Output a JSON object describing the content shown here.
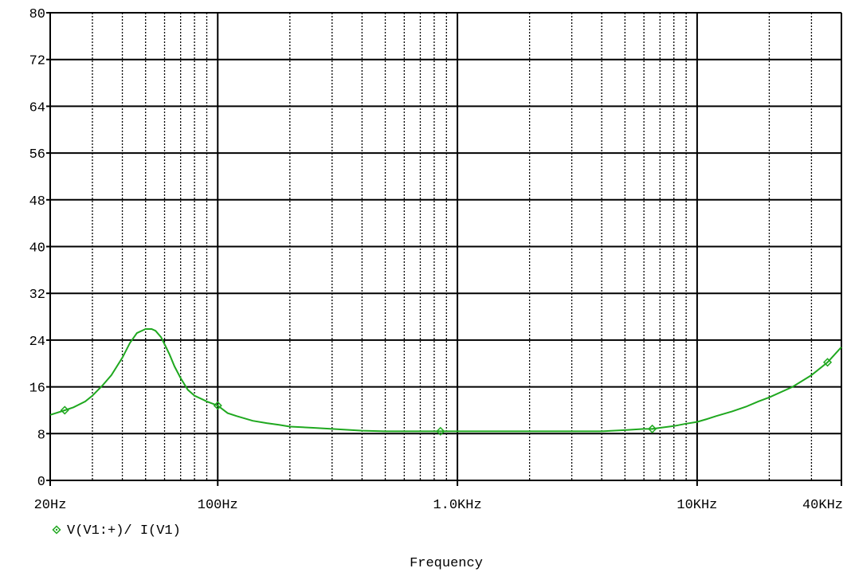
{
  "chart_data": {
    "type": "line",
    "xscale": "log",
    "xlim": [
      20,
      40000
    ],
    "ylim": [
      0,
      80
    ],
    "grid": true,
    "legend_position": "bottom-left",
    "xlabel": "Frequency",
    "ylabel": "",
    "y_ticks": [
      0,
      8,
      16,
      24,
      32,
      40,
      48,
      56,
      64,
      72,
      80
    ],
    "x_ticks": [
      {
        "value": 20,
        "label": "20Hz"
      },
      {
        "value": 100,
        "label": "100Hz"
      },
      {
        "value": 1000,
        "label": "1.0KHz"
      },
      {
        "value": 10000,
        "label": "10KHz"
      },
      {
        "value": 40000,
        "label": "40KHz"
      }
    ],
    "series": [
      {
        "name": "V(V1:+)/ I(V1)",
        "color": "#1fa81f",
        "marker": "diamond",
        "marker_x": [
          23,
          100,
          850,
          6500,
          35000
        ],
        "x": [
          20,
          23,
          25,
          28,
          30,
          33,
          36,
          40,
          43,
          46,
          50,
          53,
          55,
          58,
          60,
          63,
          66,
          70,
          75,
          80,
          90,
          100,
          110,
          120,
          140,
          160,
          180,
          200,
          250,
          300,
          400,
          500,
          700,
          1000,
          2000,
          3000,
          4000,
          5000,
          6000,
          6500,
          7000,
          8000,
          9000,
          10000,
          11000,
          12000,
          14000,
          16000,
          18000,
          20000,
          25000,
          30000,
          35000,
          40000
        ],
        "y": [
          11.2,
          12.0,
          12.5,
          13.5,
          14.5,
          16.2,
          18.0,
          21.0,
          23.5,
          25.2,
          25.9,
          25.9,
          25.6,
          24.5,
          23.3,
          21.5,
          19.5,
          17.5,
          15.5,
          14.5,
          13.5,
          12.8,
          11.5,
          11.0,
          10.2,
          9.8,
          9.5,
          9.2,
          9.0,
          8.8,
          8.5,
          8.4,
          8.4,
          8.4,
          8.4,
          8.4,
          8.4,
          8.6,
          8.8,
          8.8,
          9.0,
          9.3,
          9.7,
          10.0,
          10.5,
          11.0,
          11.8,
          12.6,
          13.5,
          14.2,
          16.0,
          18.0,
          20.2,
          22.8
        ]
      }
    ]
  }
}
